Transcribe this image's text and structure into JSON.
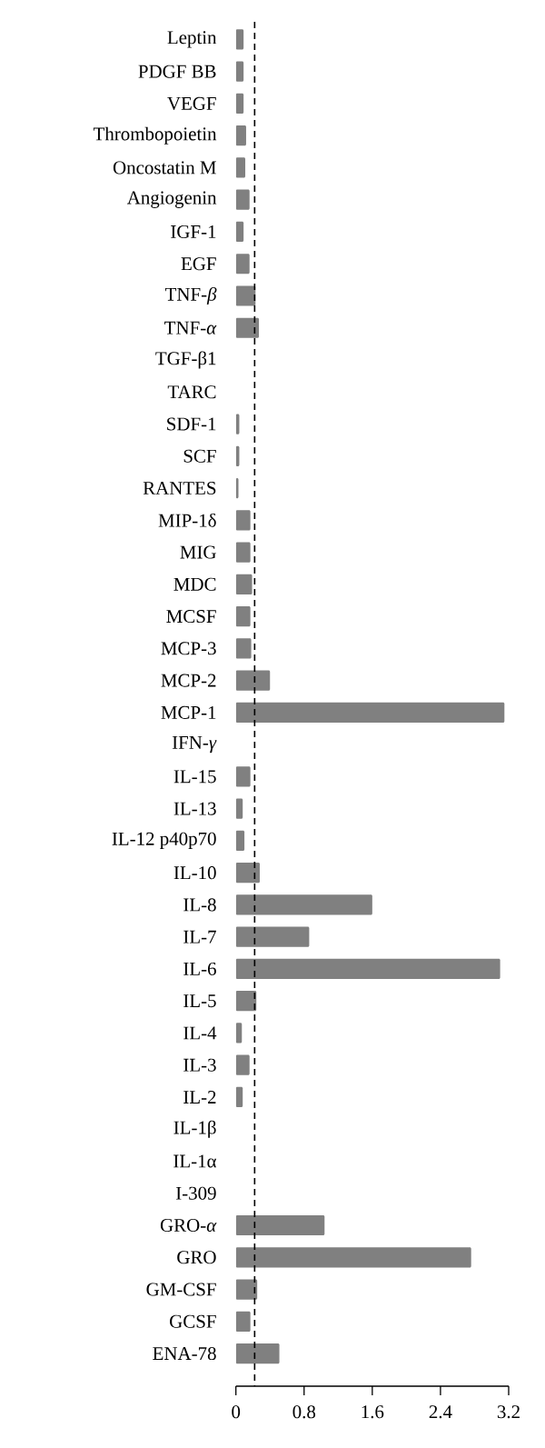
{
  "chart_data": {
    "type": "bar",
    "orientation": "horizontal",
    "categories": [
      "Leptin",
      "PDGF BB",
      "VEGF",
      "Thrombopoietin",
      "Oncostatin M",
      "Angiogenin",
      "IGF-1",
      "EGF",
      "TNF-*β*",
      "TNF-*α*",
      "TGF-β1",
      "TARC",
      "SDF-1",
      "SCF",
      "RANTES",
      "MIP-1δ",
      "MIG",
      "MDC",
      "MCSF",
      "MCP-3",
      "MCP-2",
      "MCP-1",
      "IFN-*γ*",
      "IL-15",
      "IL-13",
      "IL-12 p40p70",
      "IL-10",
      "IL-8",
      "IL-7",
      "IL-6",
      "IL-5",
      "IL-4",
      "IL-3",
      "IL-2",
      "IL-1β",
      "IL-1α",
      "I-309",
      "GRO-*α*",
      "GRO",
      "GM-CSF",
      "GCSF",
      "ENA-78"
    ],
    "values": [
      0.09,
      0.09,
      0.09,
      0.12,
      0.11,
      0.16,
      0.09,
      0.16,
      0.23,
      0.27,
      0,
      0,
      0.04,
      0.04,
      0.03,
      0.17,
      0.17,
      0.19,
      0.17,
      0.18,
      0.4,
      3.15,
      0,
      0.17,
      0.08,
      0.1,
      0.28,
      1.6,
      0.86,
      3.1,
      0.24,
      0.07,
      0.16,
      0.08,
      0,
      0,
      0,
      1.04,
      2.76,
      0.25,
      0.17,
      0.51
    ],
    "color": "#808080",
    "xlim": [
      0,
      3.2
    ],
    "xticks": [
      0,
      0.8,
      1.6,
      2.4,
      3.2
    ],
    "ref_lines": [
      {
        "axis": "x",
        "value": 0.22,
        "color": "#000000",
        "line_style": "dashed"
      }
    ]
  }
}
